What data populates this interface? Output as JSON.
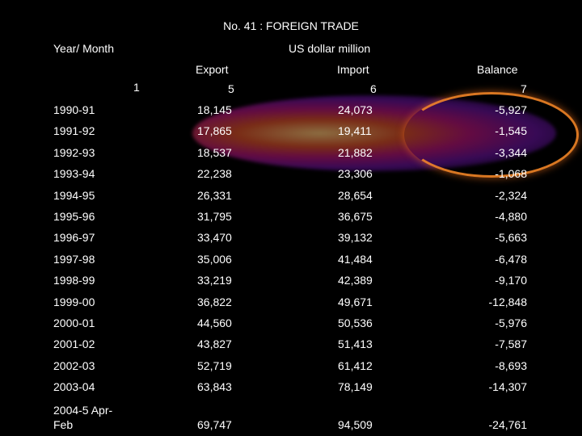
{
  "title": "No. 41 : FOREIGN TRADE",
  "header": {
    "year_month": "Year/ Month",
    "unit": "US dollar million",
    "export": "Export",
    "import": "Import",
    "balance": "Balance",
    "col_index_1": "1",
    "col_index_5": "5",
    "col_index_6": "6",
    "col_index_7": "7"
  },
  "rows": [
    {
      "year": "1990-91",
      "export": "18,145",
      "import": "24,073",
      "balance": "-5,927"
    },
    {
      "year": "1991-92",
      "export": "17,865",
      "import": "19,411",
      "balance": "-1,545"
    },
    {
      "year": "1992-93",
      "export": "18,537",
      "import": "21,882",
      "balance": "-3,344"
    },
    {
      "year": "1993-94",
      "export": "22,238",
      "import": "23,306",
      "balance": "-1,068"
    },
    {
      "year": "1994-95",
      "export": "26,331",
      "import": "28,654",
      "balance": "-2,324"
    },
    {
      "year": "1995-96",
      "export": "31,795",
      "import": "36,675",
      "balance": "-4,880"
    },
    {
      "year": "1996-97",
      "export": "33,470",
      "import": "39,132",
      "balance": "-5,663"
    },
    {
      "year": "1997-98",
      "export": "35,006",
      "import": "41,484",
      "balance": "-6,478"
    },
    {
      "year": "1998-99",
      "export": "33,219",
      "import": "42,389",
      "balance": "-9,170"
    },
    {
      "year": "1999-00",
      "export": "36,822",
      "import": "49,671",
      "balance": "-12,848"
    },
    {
      "year": "2000-01",
      "export": "44,560",
      "import": "50,536",
      "balance": "-5,976"
    },
    {
      "year": "2001-02",
      "export": "43,827",
      "import": "51,413",
      "balance": "-7,587"
    },
    {
      "year": "2002-03",
      "export": "52,719",
      "import": "61,412",
      "balance": "-8,693"
    },
    {
      "year": "2003-04",
      "export": "63,843",
      "import": "78,149",
      "balance": "-14,307"
    }
  ],
  "last_row": {
    "year_line1": "2004-5 Apr-",
    "year_line2": "Feb",
    "export": "69,747",
    "import": "94,509",
    "balance": "-24,761"
  }
}
